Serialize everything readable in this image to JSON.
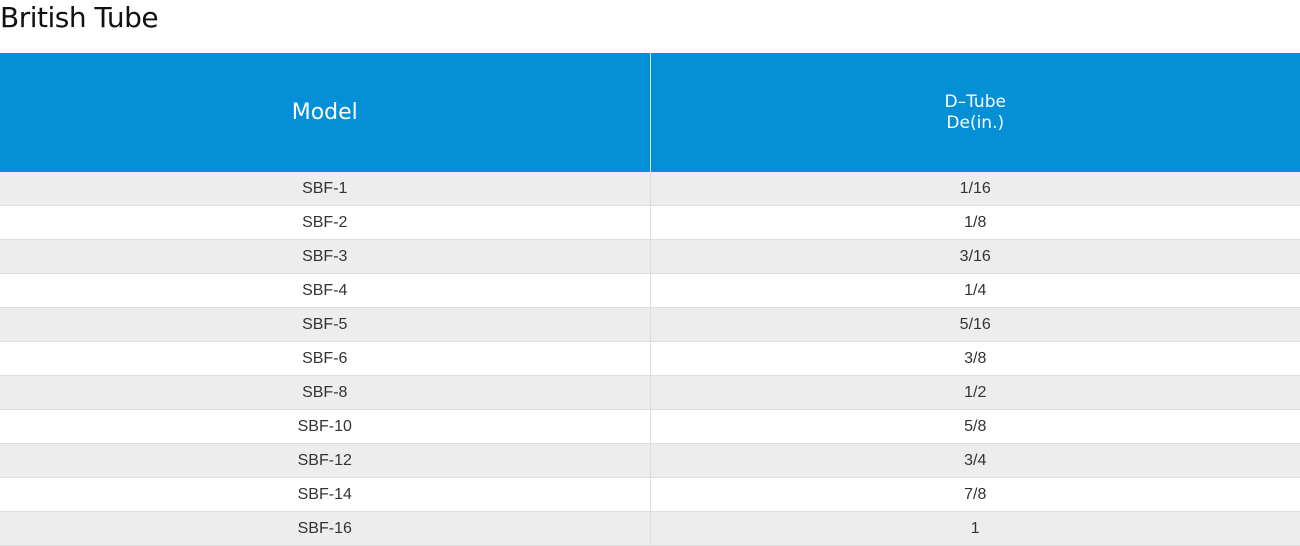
{
  "header": {
    "title": "British Tube"
  },
  "table": {
    "columns": [
      [
        "Model"
      ],
      [
        "D–Tube",
        "De(in.)"
      ]
    ],
    "rows": [
      [
        "SBF-1",
        "1/16"
      ],
      [
        "SBF-2",
        "1/8"
      ],
      [
        "SBF-3",
        "3/16"
      ],
      [
        "SBF-4",
        "1/4"
      ],
      [
        "SBF-5",
        "5/16"
      ],
      [
        "SBF-6",
        "3/8"
      ],
      [
        "SBF-8",
        "1/2"
      ],
      [
        "SBF-10",
        "5/8"
      ],
      [
        "SBF-12",
        "3/4"
      ],
      [
        "SBF-14",
        "7/8"
      ],
      [
        "SBF-16",
        "1"
      ]
    ]
  }
}
